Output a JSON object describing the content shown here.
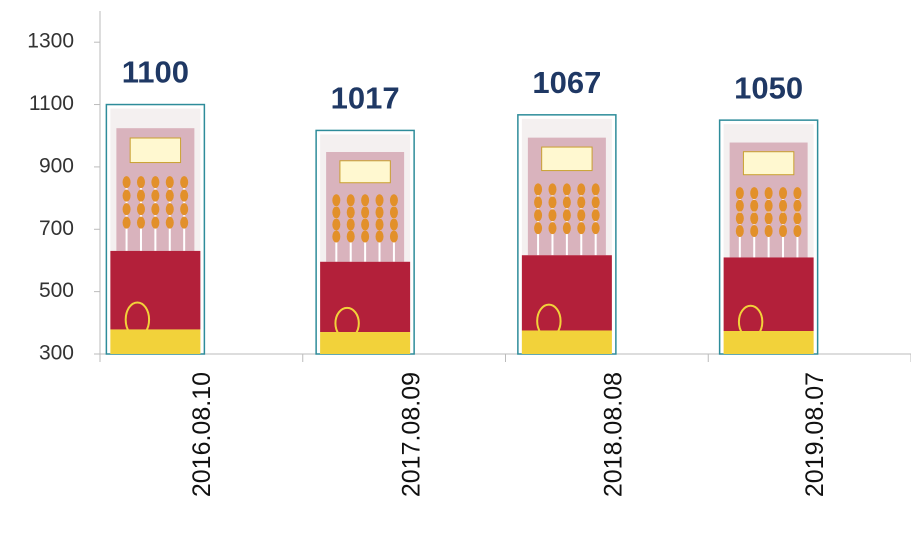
{
  "chart_data": {
    "type": "bar",
    "categories": [
      "2016.08.10",
      "2017.08.09",
      "2018.08.08",
      "2019.08.07"
    ],
    "values": [
      1100,
      1017,
      1067,
      1050
    ],
    "color": "#2e8c9a",
    "ylim": [
      300,
      1400
    ],
    "yticks": [
      300,
      500,
      700,
      900,
      1100,
      1300
    ]
  }
}
